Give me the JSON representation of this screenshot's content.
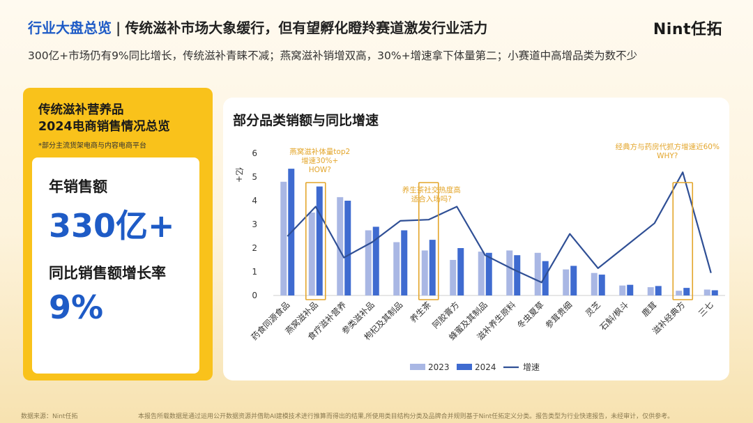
{
  "header": {
    "section": "行业大盘总览",
    "separator": "|",
    "headline": "传统滋补市场大象缓行，但有望孵化瞪羚赛道激发行业活力",
    "logo": "Nint任拓",
    "subtitle": "300亿+市场仍有9%同比增长，传统滋补青睐不减；燕窝滋补销增双高，30%+增速拿下体量第二；小赛道中高增品类为数不少"
  },
  "left_panel": {
    "title_line1": "传统滋补营养品",
    "title_line2": "2024电商销售情况总览",
    "note": "*部分主流货架电商与内容电商平台",
    "metric1_label": "年销售额",
    "metric1_value": "330亿+",
    "metric2_label": "同比销售额增长率",
    "metric2_value": "9%"
  },
  "colors": {
    "s2023": "#a9b7e4",
    "s2024": "#3f6bd0",
    "growth": "#2f4f95",
    "highlight": "#e3a52a",
    "accent_blue": "#1e5bc6",
    "card_yellow": "#f9c21b"
  },
  "chart_data": {
    "type": "bar",
    "title": "部分品类销额与同比增速",
    "ylabel": "亿+",
    "ylim": [
      0,
      6
    ],
    "yticks": [
      "0",
      "1",
      "2",
      "3",
      "4",
      "5",
      "6"
    ],
    "categories": [
      "药食同源食品",
      "燕窝滋补品",
      "食疗滋补营养",
      "参类滋补品",
      "枸杞及其制品",
      "养生茶",
      "阿胶膏方",
      "蜂蜜及其制品",
      "滋补养生原料",
      "冬虫夏草",
      "参茸贵细",
      "灵芝",
      "石斛/枫斗",
      "鹿茸",
      "滋补经典方",
      "三七"
    ],
    "series": [
      {
        "name": "2023",
        "values": [
          4.8,
          3.5,
          4.15,
          2.75,
          2.25,
          1.9,
          1.5,
          1.85,
          1.9,
          1.8,
          1.1,
          0.95,
          0.42,
          0.35,
          0.2,
          0.25
        ]
      },
      {
        "name": "2024",
        "values": [
          5.35,
          4.6,
          4.0,
          2.9,
          2.75,
          2.35,
          2.0,
          1.8,
          1.7,
          1.45,
          1.25,
          0.88,
          0.45,
          0.4,
          0.32,
          0.22
        ]
      }
    ],
    "line_series": {
      "name": "增速",
      "values": [
        2.5,
        3.75,
        1.6,
        2.25,
        3.15,
        3.2,
        3.75,
        1.7,
        1.1,
        0.55,
        2.6,
        1.15,
        2.1,
        3.05,
        5.2,
        0.95
      ]
    },
    "highlight_indices": [
      1,
      5,
      14
    ],
    "annotations": [
      {
        "lines": [
          "燕窝滋补体量top2",
          "增速30%+",
          "HOW?"
        ]
      },
      {
        "lines": [
          "养生茶社交热度高",
          "适合入场吗?"
        ]
      },
      {
        "lines": [
          "经典方与药房代抓方增速近60%",
          "WHY?"
        ]
      }
    ],
    "legend": "bottom"
  },
  "footer": {
    "source": "数据来源：Nint任拓",
    "disclaimer": "本报告所载数据是通过运用公开数据资源并借助AI建模技术进行推算而得出的结果,所使用类目结构分类及品牌合并规则基于Nint任拓定义分类。报告类型为行业快速报告，未经审计，仅供参考。"
  }
}
